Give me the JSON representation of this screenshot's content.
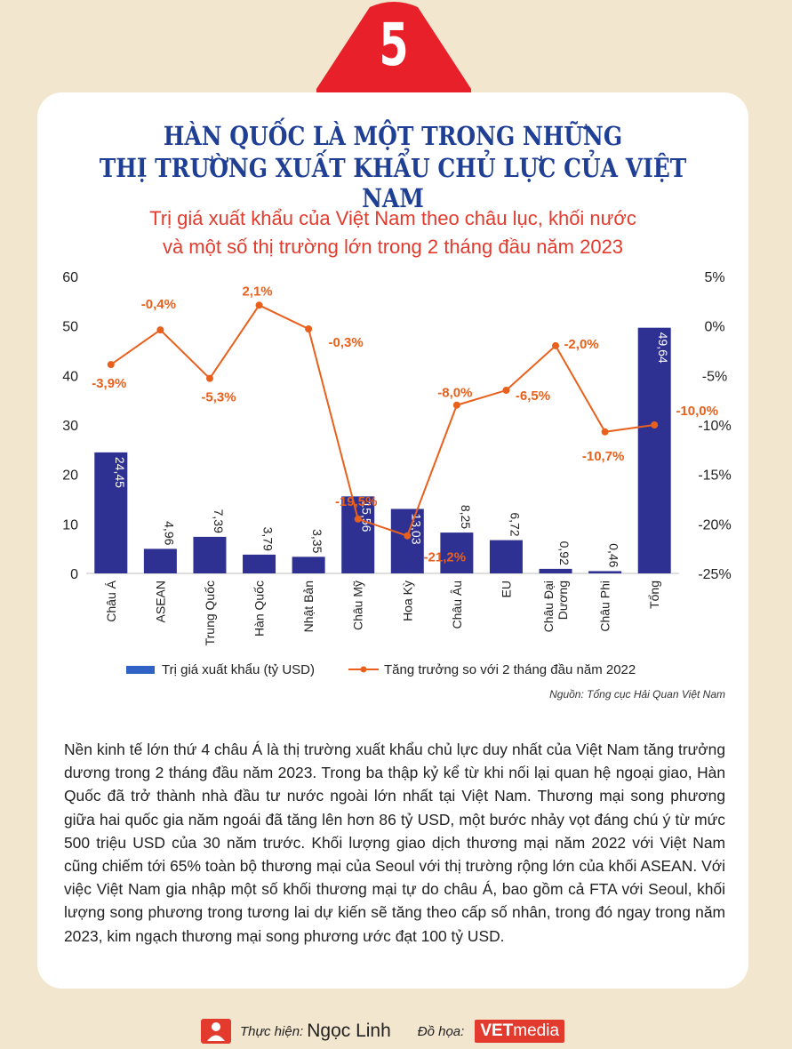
{
  "badge": {
    "number": "5",
    "color": "#e8202a"
  },
  "headline": {
    "line1": "HÀN QUỐC LÀ MỘT TRONG NHỮNG",
    "line2": "THỊ TRƯỜNG XUẤT KHẨU CHỦ LỰC CỦA VIỆT NAM"
  },
  "chart_data": {
    "type": "bar",
    "title_line1": "Trị giá xuất khẩu của Việt Nam theo châu lục, khối nước",
    "title_line2": "và một số thị trường lớn trong 2 tháng đầu năm 2023",
    "categories": [
      "Châu Á",
      "ASEAN",
      "Trung Quốc",
      "Hàn Quốc",
      "Nhật Bản",
      "Châu Mỹ",
      "Hoa Kỳ",
      "Châu Âu",
      "EU",
      "Châu Đại Dương",
      "Châu Phi",
      "Tổng"
    ],
    "series": [
      {
        "name": "Trị giá xuất khẩu (tỷ USD)",
        "type": "bar",
        "axis": "left",
        "color": "#2f3192",
        "values": [
          24.45,
          4.96,
          7.39,
          3.79,
          3.35,
          15.56,
          13.03,
          8.25,
          6.72,
          0.92,
          0.46,
          49.64
        ],
        "labels": [
          "24,45",
          "4,96",
          "7,39",
          "3,79",
          "3,35",
          "15,56",
          "13,03",
          "8,25",
          "6,72",
          "0,92",
          "0,46",
          "49,64"
        ]
      },
      {
        "name": "Tăng trưởng so với 2 tháng đầu năm 2022",
        "type": "line",
        "axis": "right",
        "color": "#e8601c",
        "values": [
          -3.9,
          -0.4,
          -5.3,
          2.1,
          -0.3,
          -19.5,
          -21.2,
          -8.0,
          -6.5,
          -2.0,
          -10.7,
          -10.0
        ],
        "labels": [
          "-3,9%",
          "-0,4%",
          "-5,3%",
          "2,1%",
          "-0,3%",
          "-19,5%",
          "-21,2%",
          "-8,0%",
          "-6,5%",
          "-2,0%",
          "-10,7%",
          "-10,0%"
        ]
      }
    ],
    "left_axis": {
      "ylim": [
        0,
        60
      ],
      "ticks": [
        "0",
        "10",
        "20",
        "30",
        "40",
        "50",
        "60"
      ]
    },
    "right_axis": {
      "ylim": [
        -25,
        5
      ],
      "ticks": [
        "-25%",
        "-20%",
        "-15%",
        "-10%",
        "-5%",
        "0%",
        "5%"
      ]
    },
    "legend_position": "bottom",
    "grid": false
  },
  "category_lines": [
    [
      "Châu Á"
    ],
    [
      "ASEAN"
    ],
    [
      "Trung Quốc"
    ],
    [
      "Hàn Quốc"
    ],
    [
      "Nhật Bản"
    ],
    [
      "Châu Mỹ"
    ],
    [
      "Hoa Kỳ"
    ],
    [
      "Châu Âu"
    ],
    [
      "EU"
    ],
    [
      "Châu Đại",
      "Dương"
    ],
    [
      "Châu Phi"
    ],
    [
      "Tổng"
    ]
  ],
  "source": "Nguồn: Tổng cục Hải Quan Việt Nam",
  "body": "Nền kinh tế lớn thứ 4 châu Á là thị trường xuất khẩu chủ lực duy nhất của Việt Nam tăng trưởng dương trong 2 tháng đầu năm 2023. Trong ba thập kỷ kể từ khi nối lại quan hệ ngoại giao, Hàn Quốc đã trở thành nhà đầu tư nước ngoài lớn nhất tại Việt Nam. Thương mại song phương giữa hai quốc gia năm ngoái đã tăng lên hơn 86 tỷ USD, một bước nhảy vọt đáng chú ý từ mức 500 triệu USD của 30 năm trước. Khối lượng giao dịch thương mại năm 2022 với Việt Nam cũng chiếm tới 65% toàn bộ thương mại của Seoul với thị trường rộng lớn của khối ASEAN. Với việc Việt Nam gia nhập một số khối thương mại tự do châu Á, bao gồm cả FTA với Seoul, khối lượng song phương trong tương lai dự kiến sẽ tăng theo cấp số nhân, trong đó ngay trong năm 2023, kim ngạch thương mại song phương ước đạt 100 tỷ USD.",
  "footer": {
    "author_role": "Thực hiện:",
    "author": "Ngọc Linh",
    "design_role": "Đồ họa:",
    "logo_bold": "VET",
    "logo_light": "media"
  }
}
